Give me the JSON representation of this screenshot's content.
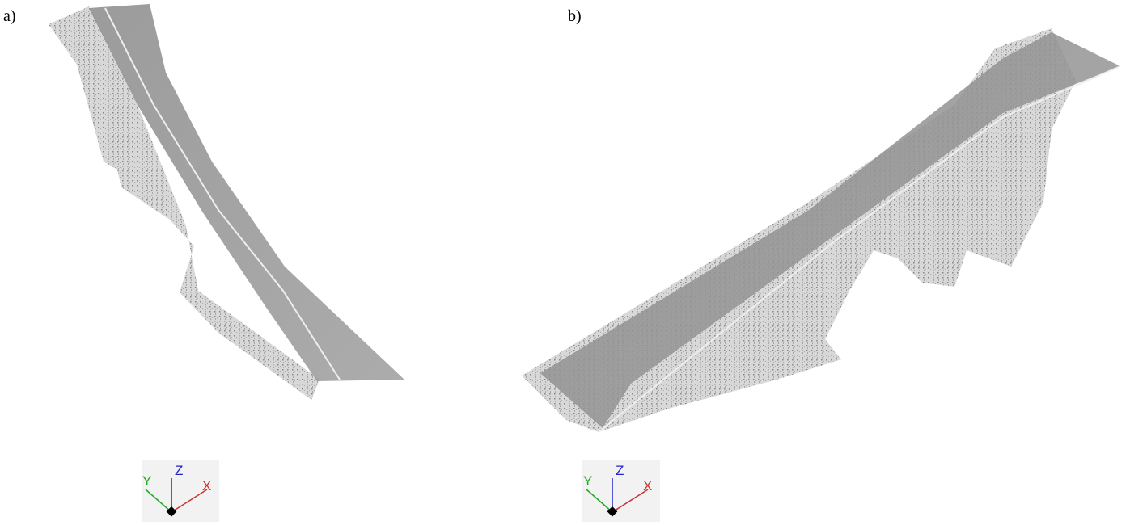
{
  "panels": [
    {
      "label": "a)",
      "axes": {
        "x": "X",
        "y": "Y",
        "z": "Z"
      }
    },
    {
      "label": "b)",
      "axes": {
        "x": "X",
        "y": "Y",
        "z": "Z"
      }
    }
  ]
}
